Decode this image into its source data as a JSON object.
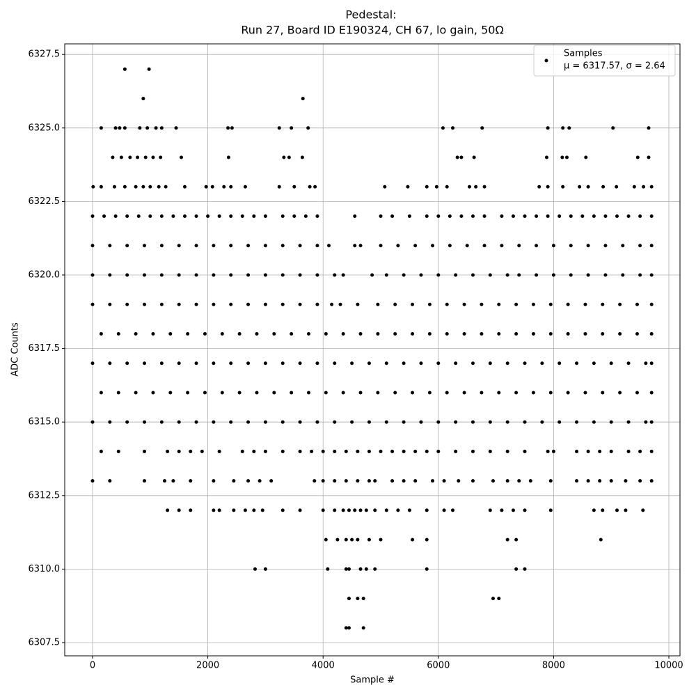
{
  "chart_data": {
    "type": "scatter",
    "title": "Pedestal:",
    "subtitle": "Run 27, Board ID E190324, CH 67, lo gain, 50Ω",
    "x_label": "Sample #",
    "y_label": "ADC Counts",
    "annotation": "μ = 6317.57, σ = 2.64",
    "legend": "upper right",
    "grid": true,
    "xlim": [
      -483,
      10193
    ],
    "ylim": [
      6307.05,
      6327.86
    ],
    "xticks": [
      0,
      2000,
      4000,
      6000,
      8000,
      10000
    ],
    "yticks": [
      {
        "value": 6307.5,
        "label": "6307.5"
      },
      {
        "value": 6310,
        "label": "6310.0"
      },
      {
        "value": 6312.5,
        "label": "6312.5"
      },
      {
        "value": 6315,
        "label": "6315.0"
      },
      {
        "value": 6317.5,
        "label": "6317.5"
      },
      {
        "value": 6320,
        "label": "6320.0"
      },
      {
        "value": 6322.5,
        "label": "6322.5"
      },
      {
        "value": 6325,
        "label": "6325.0"
      },
      {
        "value": 6327.5,
        "label": "6327.5"
      }
    ],
    "series": [
      {
        "name": "Samples",
        "color": "#000000",
        "x": [
          560,
          980,
          880,
          3650,
          150,
          400,
          470,
          560,
          820,
          950,
          1100,
          1200,
          1450,
          2350,
          2420,
          3240,
          3450,
          3740,
          6080,
          6250,
          6760,
          7900,
          8160,
          8270,
          9030,
          9650,
          350,
          500,
          650,
          780,
          920,
          1050,
          1180,
          1540,
          2360,
          3320,
          3410,
          3640,
          6330,
          6400,
          6620,
          7880,
          8150,
          8230,
          8560,
          9460,
          9650,
          10,
          150,
          380,
          560,
          750,
          880,
          1000,
          1150,
          1270,
          1600,
          1970,
          2080,
          2280,
          2400,
          2650,
          3240,
          3500,
          3770,
          3860,
          5070,
          5470,
          5800,
          5970,
          6150,
          6540,
          6650,
          6800,
          7750,
          7900,
          8160,
          8450,
          8600,
          8860,
          9090,
          9400,
          9560,
          9700,
          0,
          200,
          400,
          600,
          800,
          1000,
          1200,
          1400,
          1600,
          1800,
          2000,
          2200,
          2400,
          2600,
          2800,
          3000,
          3300,
          3500,
          3700,
          3900,
          4550,
          5000,
          5200,
          5500,
          5800,
          6000,
          6200,
          6400,
          6600,
          6800,
          7100,
          7300,
          7500,
          7700,
          7900,
          8100,
          8300,
          8500,
          8700,
          8900,
          9100,
          9300,
          9500,
          9700,
          0,
          300,
          600,
          900,
          1200,
          1500,
          1800,
          2100,
          2400,
          2700,
          3000,
          3300,
          3600,
          3900,
          4100,
          4550,
          4650,
          5000,
          5300,
          5600,
          5900,
          6200,
          6500,
          6800,
          7100,
          7400,
          7700,
          8000,
          8300,
          8600,
          8900,
          9200,
          9500,
          9700,
          0,
          300,
          600,
          900,
          1200,
          1500,
          1800,
          2100,
          2400,
          2700,
          3000,
          3300,
          3600,
          3900,
          4200,
          4350,
          4850,
          5100,
          5400,
          5700,
          6000,
          6300,
          6600,
          6900,
          7200,
          7400,
          7700,
          8000,
          8300,
          8600,
          8900,
          9200,
          9500,
          9700,
          0,
          300,
          600,
          900,
          1200,
          1500,
          1800,
          2100,
          2400,
          2700,
          3000,
          3300,
          3600,
          3900,
          4150,
          4300,
          4600,
          4950,
          5250,
          5550,
          5850,
          6150,
          6450,
          6750,
          7050,
          7350,
          7650,
          7950,
          8250,
          8550,
          8850,
          9150,
          9450,
          9700,
          150,
          450,
          750,
          1050,
          1350,
          1650,
          1950,
          2250,
          2550,
          2850,
          3150,
          3450,
          3750,
          4050,
          4350,
          4650,
          4950,
          5250,
          5550,
          5850,
          6150,
          6450,
          6750,
          7050,
          7350,
          7650,
          7950,
          8250,
          8550,
          8850,
          9150,
          9450,
          9700,
          0,
          300,
          600,
          900,
          1200,
          1500,
          1800,
          2100,
          2400,
          2700,
          3000,
          3300,
          3600,
          3900,
          4200,
          4500,
          4800,
          5100,
          5400,
          5700,
          6000,
          6300,
          6600,
          6900,
          7200,
          7500,
          7800,
          8100,
          8400,
          8700,
          9000,
          9300,
          9600,
          9700,
          150,
          450,
          750,
          1050,
          1350,
          1650,
          1950,
          2250,
          2550,
          2850,
          3150,
          3450,
          3750,
          4050,
          4350,
          4650,
          4950,
          5250,
          5550,
          5850,
          6150,
          6450,
          6750,
          7050,
          7350,
          7650,
          7950,
          8250,
          8550,
          8850,
          9150,
          9450,
          9700,
          0,
          300,
          600,
          900,
          1200,
          1500,
          1800,
          2100,
          2400,
          2700,
          3000,
          3300,
          3600,
          3900,
          4200,
          4500,
          4800,
          5100,
          5400,
          5700,
          6000,
          6300,
          6600,
          6900,
          7200,
          7500,
          7800,
          8100,
          8400,
          8700,
          9000,
          9300,
          9600,
          9700,
          150,
          450,
          900,
          1300,
          1500,
          1700,
          1900,
          2200,
          2600,
          2800,
          3000,
          3300,
          3600,
          3800,
          4000,
          4200,
          4400,
          4600,
          4800,
          5000,
          5200,
          5400,
          5600,
          5800,
          6000,
          6300,
          6600,
          6900,
          7200,
          7500,
          7900,
          8000,
          8400,
          8600,
          8800,
          9000,
          9300,
          9500,
          9700,
          0,
          300,
          900,
          1250,
          1400,
          1700,
          2100,
          2450,
          2700,
          2900,
          3100,
          3850,
          4000,
          4200,
          4400,
          4600,
          4800,
          4900,
          5200,
          5400,
          5600,
          5900,
          6100,
          6350,
          6600,
          6950,
          7200,
          7400,
          7600,
          7950,
          8400,
          8600,
          8800,
          9000,
          9250,
          9500,
          9700,
          1300,
          1500,
          1700,
          2100,
          2200,
          2450,
          2650,
          2800,
          2950,
          3300,
          3600,
          4000,
          4200,
          4350,
          4450,
          4550,
          4650,
          4750,
          4900,
          5100,
          5300,
          5500,
          5800,
          6100,
          6250,
          6900,
          7100,
          7300,
          7500,
          7950,
          8700,
          8850,
          9100,
          9250,
          9550,
          4050,
          4250,
          4400,
          4500,
          4600,
          4800,
          5000,
          5550,
          5800,
          7200,
          7350,
          8820,
          2820,
          3000,
          4080,
          4400,
          4450,
          4650,
          4750,
          4900,
          5800,
          7350,
          7500,
          4450,
          4600,
          4700,
          6950,
          7050,
          4400,
          4450,
          4700
        ],
        "values": [
          6327,
          6327,
          6326,
          6326,
          6325,
          6325,
          6325,
          6325,
          6325,
          6325,
          6325,
          6325,
          6325,
          6325,
          6325,
          6325,
          6325,
          6325,
          6325,
          6325,
          6325,
          6325,
          6325,
          6325,
          6325,
          6325,
          6324,
          6324,
          6324,
          6324,
          6324,
          6324,
          6324,
          6324,
          6324,
          6324,
          6324,
          6324,
          6324,
          6324,
          6324,
          6324,
          6324,
          6324,
          6324,
          6324,
          6324,
          6323,
          6323,
          6323,
          6323,
          6323,
          6323,
          6323,
          6323,
          6323,
          6323,
          6323,
          6323,
          6323,
          6323,
          6323,
          6323,
          6323,
          6323,
          6323,
          6323,
          6323,
          6323,
          6323,
          6323,
          6323,
          6323,
          6323,
          6323,
          6323,
          6323,
          6323,
          6323,
          6323,
          6323,
          6323,
          6323,
          6323,
          6322,
          6322,
          6322,
          6322,
          6322,
          6322,
          6322,
          6322,
          6322,
          6322,
          6322,
          6322,
          6322,
          6322,
          6322,
          6322,
          6322,
          6322,
          6322,
          6322,
          6322,
          6322,
          6322,
          6322,
          6322,
          6322,
          6322,
          6322,
          6322,
          6322,
          6322,
          6322,
          6322,
          6322,
          6322,
          6322,
          6322,
          6322,
          6322,
          6322,
          6322,
          6322,
          6322,
          6322,
          6321,
          6321,
          6321,
          6321,
          6321,
          6321,
          6321,
          6321,
          6321,
          6321,
          6321,
          6321,
          6321,
          6321,
          6321,
          6321,
          6321,
          6321,
          6321,
          6321,
          6321,
          6321,
          6321,
          6321,
          6321,
          6321,
          6321,
          6321,
          6321,
          6321,
          6321,
          6321,
          6321,
          6321,
          6320,
          6320,
          6320,
          6320,
          6320,
          6320,
          6320,
          6320,
          6320,
          6320,
          6320,
          6320,
          6320,
          6320,
          6320,
          6320,
          6320,
          6320,
          6320,
          6320,
          6320,
          6320,
          6320,
          6320,
          6320,
          6320,
          6320,
          6320,
          6320,
          6320,
          6320,
          6320,
          6320,
          6320,
          6319,
          6319,
          6319,
          6319,
          6319,
          6319,
          6319,
          6319,
          6319,
          6319,
          6319,
          6319,
          6319,
          6319,
          6319,
          6319,
          6319,
          6319,
          6319,
          6319,
          6319,
          6319,
          6319,
          6319,
          6319,
          6319,
          6319,
          6319,
          6319,
          6319,
          6319,
          6319,
          6319,
          6319,
          6318,
          6318,
          6318,
          6318,
          6318,
          6318,
          6318,
          6318,
          6318,
          6318,
          6318,
          6318,
          6318,
          6318,
          6318,
          6318,
          6318,
          6318,
          6318,
          6318,
          6318,
          6318,
          6318,
          6318,
          6318,
          6318,
          6318,
          6318,
          6318,
          6318,
          6318,
          6318,
          6318,
          6317,
          6317,
          6317,
          6317,
          6317,
          6317,
          6317,
          6317,
          6317,
          6317,
          6317,
          6317,
          6317,
          6317,
          6317,
          6317,
          6317,
          6317,
          6317,
          6317,
          6317,
          6317,
          6317,
          6317,
          6317,
          6317,
          6317,
          6317,
          6317,
          6317,
          6317,
          6317,
          6317,
          6317,
          6316,
          6316,
          6316,
          6316,
          6316,
          6316,
          6316,
          6316,
          6316,
          6316,
          6316,
          6316,
          6316,
          6316,
          6316,
          6316,
          6316,
          6316,
          6316,
          6316,
          6316,
          6316,
          6316,
          6316,
          6316,
          6316,
          6316,
          6316,
          6316,
          6316,
          6316,
          6316,
          6316,
          6315,
          6315,
          6315,
          6315,
          6315,
          6315,
          6315,
          6315,
          6315,
          6315,
          6315,
          6315,
          6315,
          6315,
          6315,
          6315,
          6315,
          6315,
          6315,
          6315,
          6315,
          6315,
          6315,
          6315,
          6315,
          6315,
          6315,
          6315,
          6315,
          6315,
          6315,
          6315,
          6315,
          6315,
          6314,
          6314,
          6314,
          6314,
          6314,
          6314,
          6314,
          6314,
          6314,
          6314,
          6314,
          6314,
          6314,
          6314,
          6314,
          6314,
          6314,
          6314,
          6314,
          6314,
          6314,
          6314,
          6314,
          6314,
          6314,
          6314,
          6314,
          6314,
          6314,
          6314,
          6314,
          6314,
          6314,
          6314,
          6314,
          6314,
          6314,
          6314,
          6314,
          6313,
          6313,
          6313,
          6313,
          6313,
          6313,
          6313,
          6313,
          6313,
          6313,
          6313,
          6313,
          6313,
          6313,
          6313,
          6313,
          6313,
          6313,
          6313,
          6313,
          6313,
          6313,
          6313,
          6313,
          6313,
          6313,
          6313,
          6313,
          6313,
          6313,
          6313,
          6313,
          6313,
          6313,
          6313,
          6313,
          6313,
          6312,
          6312,
          6312,
          6312,
          6312,
          6312,
          6312,
          6312,
          6312,
          6312,
          6312,
          6312,
          6312,
          6312,
          6312,
          6312,
          6312,
          6312,
          6312,
          6312,
          6312,
          6312,
          6312,
          6312,
          6312,
          6312,
          6312,
          6312,
          6312,
          6312,
          6312,
          6312,
          6312,
          6312,
          6312,
          6311,
          6311,
          6311,
          6311,
          6311,
          6311,
          6311,
          6311,
          6311,
          6311,
          6311,
          6311,
          6310,
          6310,
          6310,
          6310,
          6310,
          6310,
          6310,
          6310,
          6310,
          6310,
          6310,
          6309,
          6309,
          6309,
          6309,
          6309,
          6308,
          6308,
          6308
        ]
      }
    ]
  }
}
